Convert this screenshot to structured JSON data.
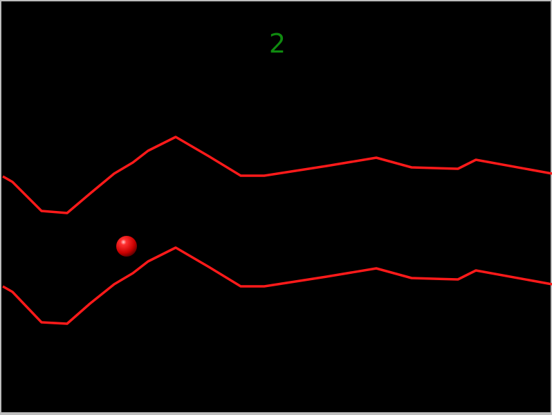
{
  "game": {
    "score": "2",
    "score_color": "#0f8a0f",
    "background_color": "#000000",
    "wall_color": "#ff1a1a",
    "ball_color": "#ff2020"
  }
}
